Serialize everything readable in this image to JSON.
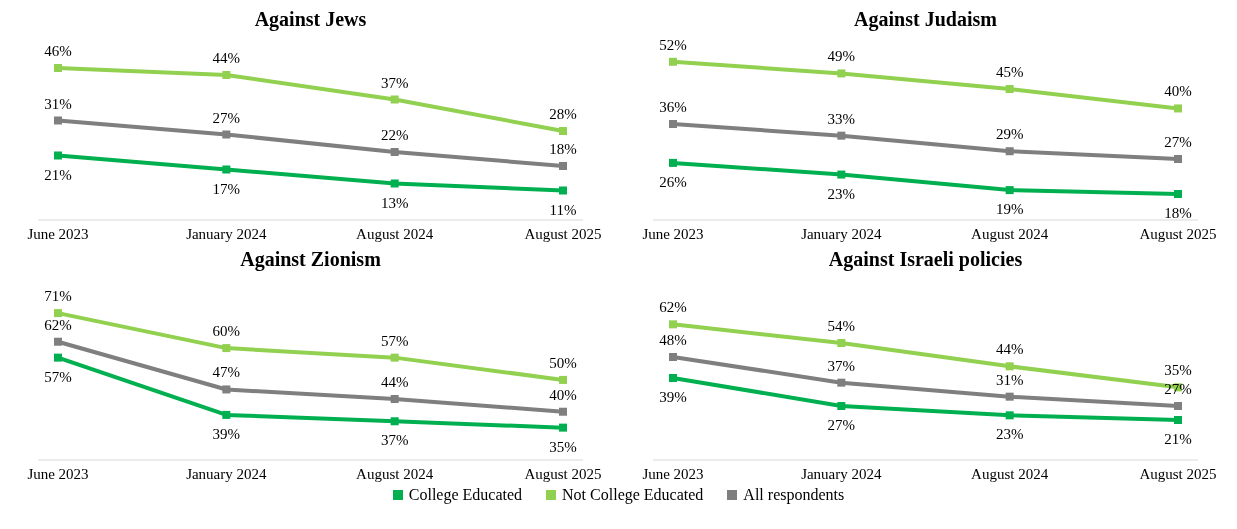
{
  "chart_data": [
    {
      "type": "line",
      "title": "Against Jews",
      "categories": [
        "June 2023",
        "January 2024",
        "August 2024",
        "August 2025"
      ],
      "marker": "square",
      "grid": false,
      "legend": "bottom",
      "series": [
        {
          "name": "College Educated",
          "color": "#00b050",
          "values": [
            21,
            17,
            13,
            11
          ],
          "value_labels": [
            "21%",
            "17%",
            "13%",
            "11%"
          ]
        },
        {
          "name": "Not College Educated",
          "color": "#92d050",
          "values": [
            46,
            44,
            37,
            28
          ],
          "value_labels": [
            "46%",
            "44%",
            "37%",
            "28%"
          ]
        },
        {
          "name": "All respondents",
          "color": "#7f7f7f",
          "values": [
            31,
            27,
            22,
            18
          ],
          "value_labels": [
            "31%",
            "27%",
            "22%",
            "18%"
          ]
        }
      ]
    },
    {
      "type": "line",
      "title": "Against Judaism",
      "categories": [
        "June 2023",
        "January 2024",
        "August 2024",
        "August 2025"
      ],
      "marker": "square",
      "grid": false,
      "series": [
        {
          "color": "#00b050",
          "values": [
            26,
            23,
            19,
            18
          ],
          "value_labels": [
            "26%",
            "23%",
            "19%",
            "18%"
          ]
        },
        {
          "color": "#92d050",
          "values": [
            52,
            49,
            45,
            40
          ],
          "value_labels": [
            "52%",
            "49%",
            "45%",
            "40%"
          ]
        },
        {
          "color": "#7f7f7f",
          "values": [
            36,
            33,
            29,
            27
          ],
          "value_labels": [
            "36%",
            "33%",
            "29%",
            "27%"
          ]
        }
      ]
    },
    {
      "type": "line",
      "title": "Against Zionism",
      "categories": [
        "June 2023",
        "January 2024",
        "August 2024",
        "August 2025"
      ],
      "marker": "square",
      "grid": false,
      "series": [
        {
          "color": "#00b050",
          "values": [
            57,
            39,
            37,
            35
          ],
          "value_labels": [
            "57%",
            "39%",
            "37%",
            "35%"
          ]
        },
        {
          "color": "#92d050",
          "values": [
            71,
            60,
            57,
            50
          ],
          "value_labels": [
            "71%",
            "60%",
            "57%",
            "50%"
          ]
        },
        {
          "color": "#7f7f7f",
          "values": [
            62,
            47,
            44,
            40
          ],
          "value_labels": [
            "62%",
            "47%",
            "44%",
            "40%"
          ]
        }
      ]
    },
    {
      "type": "line",
      "title": "Against Israeli policies",
      "categories": [
        "June 2023",
        "January 2024",
        "August 2024",
        "August 2025"
      ],
      "marker": "square",
      "grid": false,
      "series": [
        {
          "color": "#00b050",
          "values": [
            39,
            27,
            23,
            21
          ],
          "value_labels": [
            "39%",
            "27%",
            "23%",
            "21%"
          ]
        },
        {
          "color": "#92d050",
          "values": [
            62,
            54,
            44,
            35
          ],
          "value_labels": [
            "62%",
            "54%",
            "44%",
            "35%"
          ]
        },
        {
          "color": "#7f7f7f",
          "values": [
            48,
            37,
            31,
            27
          ],
          "value_labels": [
            "48%",
            "37%",
            "31%",
            "27%"
          ]
        }
      ]
    }
  ]
}
